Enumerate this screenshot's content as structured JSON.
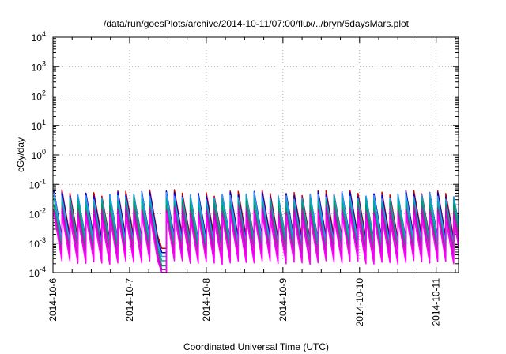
{
  "chart_data": {
    "type": "line",
    "title": "/data/run/goesPlots/archive/2014-10-11/07:00/flux/../bryn/5daysMars.plot",
    "xlabel": "Coordinated Universal Time (UTC)",
    "ylabel": "cGy/day",
    "y_scale": "log",
    "ylim": [
      0.0001,
      10000
    ],
    "x_start": "2014-10-06 00:00",
    "x_end": "2014-10-11 07:00",
    "xticks": [
      "2014-10-6",
      "2014-10-7",
      "2014-10-8",
      "2014-10-9",
      "2014-10-10",
      "2014-10-11"
    ],
    "yticks": [
      {
        "base": "10",
        "exp": "-4"
      },
      {
        "base": "10",
        "exp": "-3"
      },
      {
        "base": "10",
        "exp": "-2"
      },
      {
        "base": "10",
        "exp": "-1"
      },
      {
        "base": "10",
        "exp": "0"
      },
      {
        "base": "10",
        "exp": "1"
      },
      {
        "base": "10",
        "exp": "2"
      },
      {
        "base": "10",
        "exp": "3"
      },
      {
        "base": "10",
        "exp": "4"
      }
    ],
    "grid": true,
    "legend": "none",
    "pattern": "sawtooth, period ~2.5 h",
    "gap": {
      "start": "2014-10-07 08:30",
      "end": "2014-10-07 11:30"
    },
    "series": [
      {
        "color": "#cc0000",
        "peak": 0.05,
        "trough": 0.0015
      },
      {
        "color": "#0000cc",
        "peak": 0.045,
        "trough": 0.0012
      },
      {
        "color": "#3399ff",
        "peak": 0.04,
        "trough": 0.001
      },
      {
        "color": "#00aaaa",
        "peak": 0.03,
        "trough": 0.0008
      },
      {
        "color": "#009966",
        "peak": 0.02,
        "trough": 0.0006
      },
      {
        "color": "#993399",
        "peak": 0.015,
        "trough": 0.0005
      },
      {
        "color": "#cc00cc",
        "peak": 0.012,
        "trough": 0.0003
      },
      {
        "color": "#ff00ff",
        "peak": 0.008,
        "trough": 0.00022
      }
    ]
  }
}
